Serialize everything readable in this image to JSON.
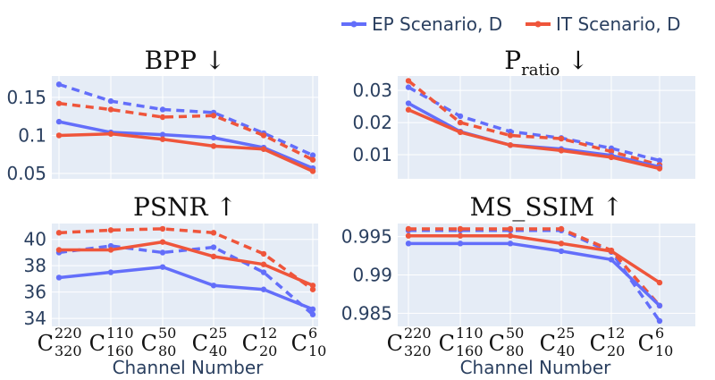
{
  "chart_data": [
    {
      "type": "line",
      "title": "BPP ↓",
      "categories": [
        "C220/320",
        "C110/160",
        "C50/80",
        "C25/40",
        "C12/20",
        "C6/10"
      ],
      "yticks": [
        "0.05",
        "0.1",
        "0.15"
      ],
      "ylim": [
        0.043,
        0.178
      ],
      "series": [
        {
          "name": "EP Scenario, D",
          "values": [
            0.118,
            0.104,
            0.101,
            0.097,
            0.084,
            0.057
          ]
        },
        {
          "name": "EP Scenario, D (dashed)",
          "values": [
            0.167,
            0.145,
            0.134,
            0.13,
            0.103,
            0.074
          ]
        },
        {
          "name": "IT Scenario, D",
          "values": [
            0.1,
            0.102,
            0.095,
            0.086,
            0.082,
            0.053
          ]
        },
        {
          "name": "IT Scenario, D (dashed)",
          "values": [
            0.142,
            0.134,
            0.124,
            0.126,
            0.1,
            0.068
          ]
        }
      ]
    },
    {
      "type": "line",
      "title": "P_ratio ↓",
      "categories": [
        "C220/320",
        "C110/160",
        "C50/80",
        "C25/40",
        "C12/20",
        "C6/10"
      ],
      "yticks": [
        "0.01",
        "0.02",
        "0.03"
      ],
      "ylim": [
        0.0025,
        0.0345
      ],
      "series": [
        {
          "name": "EP Scenario, D",
          "values": [
            0.026,
            0.0172,
            0.013,
            0.0118,
            0.0098,
            0.0062
          ]
        },
        {
          "name": "EP Scenario, D (dashed)",
          "values": [
            0.031,
            0.022,
            0.0172,
            0.0152,
            0.012,
            0.0082
          ]
        },
        {
          "name": "IT Scenario, D",
          "values": [
            0.024,
            0.017,
            0.013,
            0.0113,
            0.0092,
            0.0057
          ]
        },
        {
          "name": "IT Scenario, D (dashed)",
          "values": [
            0.033,
            0.02,
            0.016,
            0.015,
            0.011,
            0.0068
          ]
        }
      ]
    },
    {
      "type": "line",
      "title": "PSNR ↑",
      "categories": [
        "C220/320",
        "C110/160",
        "C50/80",
        "C25/40",
        "C12/20",
        "C6/10"
      ],
      "yticks": [
        "34",
        "36",
        "38",
        "40"
      ],
      "ylim": [
        33.4,
        41.2
      ],
      "series": [
        {
          "name": "EP Scenario, D",
          "values": [
            37.1,
            37.5,
            37.9,
            36.5,
            36.2,
            34.7
          ]
        },
        {
          "name": "EP Scenario, D (dashed)",
          "values": [
            39.0,
            39.5,
            39.0,
            39.4,
            37.5,
            34.3
          ]
        },
        {
          "name": "IT Scenario, D",
          "values": [
            39.2,
            39.2,
            39.8,
            38.7,
            38.1,
            36.5
          ]
        },
        {
          "name": "IT Scenario, D (dashed)",
          "values": [
            40.5,
            40.7,
            40.8,
            40.5,
            38.9,
            36.2
          ]
        }
      ]
    },
    {
      "type": "line",
      "title": "MS_SSIM ↑",
      "categories": [
        "C220/320",
        "C110/160",
        "C50/80",
        "C25/40",
        "C12/20",
        "C6/10"
      ],
      "yticks": [
        "0.985",
        "0.99",
        "0.995"
      ],
      "ylim": [
        0.9833,
        0.9967
      ],
      "series": [
        {
          "name": "EP Scenario, D",
          "values": [
            0.9941,
            0.9941,
            0.9941,
            0.9931,
            0.992,
            0.986
          ]
        },
        {
          "name": "EP Scenario, D (dashed)",
          "values": [
            0.9958,
            0.9958,
            0.9958,
            0.9958,
            0.993,
            0.984
          ]
        },
        {
          "name": "IT Scenario, D",
          "values": [
            0.9951,
            0.9951,
            0.9951,
            0.9941,
            0.9931,
            0.989
          ]
        },
        {
          "name": "IT Scenario, D (dashed)",
          "values": [
            0.996,
            0.996,
            0.996,
            0.996,
            0.9932,
            0.986
          ]
        }
      ]
    }
  ],
  "legend": [
    {
      "label": "EP Scenario, D",
      "color": "#636efa"
    },
    {
      "label": "IT Scenario, D",
      "color": "#ef553b"
    }
  ],
  "xlabel": "Channel Number",
  "xticks": [
    {
      "base": "C",
      "sup": "220",
      "sub": "320"
    },
    {
      "base": "C",
      "sup": "110",
      "sub": "160"
    },
    {
      "base": "C",
      "sup": "50",
      "sub": "80"
    },
    {
      "base": "C",
      "sup": "25",
      "sub": "40"
    },
    {
      "base": "C",
      "sup": "12",
      "sub": "20"
    },
    {
      "base": "C",
      "sup": "6",
      "sub": "10"
    }
  ],
  "title_parts": [
    {
      "main": "BPP",
      "sub": "",
      "arrow": "↓"
    },
    {
      "main": "P",
      "sub": "ratio",
      "arrow": "↓"
    },
    {
      "main": "PSNR",
      "sub": "",
      "arrow": "↑"
    },
    {
      "main": "MS_SSIM",
      "sub": "",
      "arrow": "↑"
    }
  ],
  "colors": {
    "ep": "#636efa",
    "it": "#ef553b",
    "plot_bg": "#e5ecf6",
    "grid": "#ffffff"
  }
}
